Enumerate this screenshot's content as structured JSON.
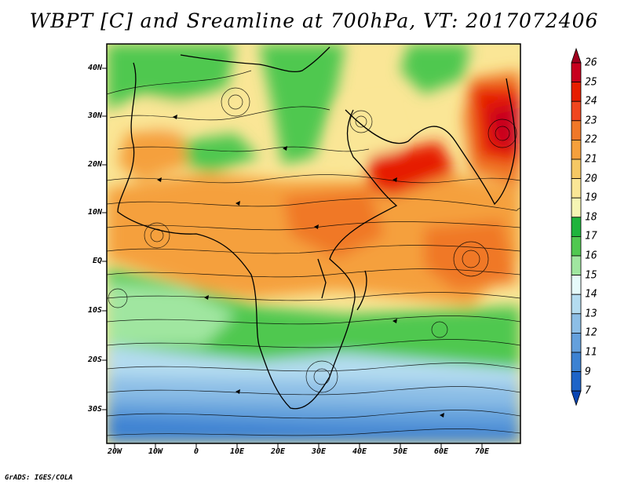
{
  "title": "WBPT [C] and Sreamline at 700hPa, VT: 2017072406",
  "credit": "GrADS: IGES/COLA",
  "map": {
    "lat_ticks": [
      "40N",
      "30N",
      "20N",
      "10N",
      "EQ",
      "10S",
      "20S",
      "30S"
    ],
    "lon_ticks": [
      "20W",
      "10W",
      "0",
      "10E",
      "20E",
      "30E",
      "40E",
      "50E",
      "60E",
      "70E"
    ],
    "extent": {
      "lon_min": -22,
      "lon_max": 80,
      "lat_min": -36,
      "lat_max": 45
    }
  },
  "colorbar": {
    "labels": [
      "26",
      "25",
      "24",
      "23",
      "22",
      "21",
      "20",
      "19",
      "18",
      "17",
      "16",
      "15",
      "14",
      "13",
      "12",
      "11",
      "9",
      "7"
    ],
    "colors": [
      "#a0001e",
      "#c8001e",
      "#e61e00",
      "#f0461e",
      "#f07828",
      "#f5a03c",
      "#f5c864",
      "#fae696",
      "#f5f5b4",
      "#1eb43c",
      "#50c850",
      "#a0e6a0",
      "#e6fafa",
      "#b4dcf0",
      "#8cbee6",
      "#64a0dc",
      "#3c82d2",
      "#1e64c8",
      "#0a46b4"
    ]
  }
}
